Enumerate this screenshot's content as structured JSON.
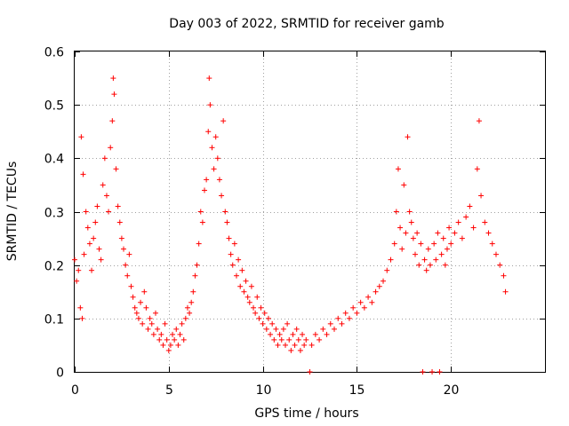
{
  "chart_data": {
    "type": "scatter",
    "title": "Day 003 of 2022, SRMTID for receiver gamb",
    "xlabel": "GPS time / hours",
    "ylabel": "SRMTID / TECUs",
    "xlim": [
      0,
      25
    ],
    "ylim": [
      0,
      0.6
    ],
    "x_ticks": [
      0,
      5,
      10,
      15,
      20
    ],
    "y_ticks": [
      0,
      0.1,
      0.2,
      0.3,
      0.4,
      0.5,
      0.6
    ],
    "x_tick_labels": [
      "0",
      "5",
      "10",
      "15",
      "20"
    ],
    "y_tick_labels": [
      "0",
      "0.1",
      "0.2",
      "0.3",
      "0.4",
      "0.5",
      "0.6"
    ],
    "grid": true,
    "marker": "+",
    "series_color": "#ff0000",
    "series": [
      {
        "name": "SRMTID",
        "points": [
          [
            0.0,
            0.21
          ],
          [
            0.1,
            0.17
          ],
          [
            0.2,
            0.19
          ],
          [
            0.3,
            0.12
          ],
          [
            0.35,
            0.44
          ],
          [
            0.4,
            0.1
          ],
          [
            0.45,
            0.37
          ],
          [
            0.5,
            0.22
          ],
          [
            0.6,
            0.3
          ],
          [
            0.7,
            0.27
          ],
          [
            0.8,
            0.24
          ],
          [
            0.9,
            0.19
          ],
          [
            1.0,
            0.25
          ],
          [
            1.1,
            0.28
          ],
          [
            1.2,
            0.31
          ],
          [
            1.3,
            0.23
          ],
          [
            1.4,
            0.21
          ],
          [
            1.5,
            0.35
          ],
          [
            1.6,
            0.4
          ],
          [
            1.7,
            0.33
          ],
          [
            1.8,
            0.3
          ],
          [
            1.9,
            0.42
          ],
          [
            2.0,
            0.47
          ],
          [
            2.05,
            0.55
          ],
          [
            2.1,
            0.52
          ],
          [
            2.2,
            0.38
          ],
          [
            2.3,
            0.31
          ],
          [
            2.4,
            0.28
          ],
          [
            2.5,
            0.25
          ],
          [
            2.6,
            0.23
          ],
          [
            2.7,
            0.2
          ],
          [
            2.8,
            0.18
          ],
          [
            2.9,
            0.22
          ],
          [
            3.0,
            0.16
          ],
          [
            3.1,
            0.14
          ],
          [
            3.2,
            0.12
          ],
          [
            3.3,
            0.11
          ],
          [
            3.4,
            0.1
          ],
          [
            3.5,
            0.13
          ],
          [
            3.6,
            0.09
          ],
          [
            3.7,
            0.15
          ],
          [
            3.8,
            0.12
          ],
          [
            3.9,
            0.08
          ],
          [
            4.0,
            0.1
          ],
          [
            4.1,
            0.09
          ],
          [
            4.2,
            0.07
          ],
          [
            4.3,
            0.11
          ],
          [
            4.4,
            0.08
          ],
          [
            4.5,
            0.06
          ],
          [
            4.6,
            0.07
          ],
          [
            4.7,
            0.05
          ],
          [
            4.8,
            0.09
          ],
          [
            4.9,
            0.06
          ],
          [
            5.0,
            0.04
          ],
          [
            5.1,
            0.05
          ],
          [
            5.2,
            0.07
          ],
          [
            5.3,
            0.06
          ],
          [
            5.4,
            0.08
          ],
          [
            5.5,
            0.05
          ],
          [
            5.6,
            0.07
          ],
          [
            5.7,
            0.09
          ],
          [
            5.8,
            0.06
          ],
          [
            5.9,
            0.1
          ],
          [
            6.0,
            0.12
          ],
          [
            6.1,
            0.11
          ],
          [
            6.2,
            0.13
          ],
          [
            6.3,
            0.15
          ],
          [
            6.4,
            0.18
          ],
          [
            6.5,
            0.2
          ],
          [
            6.6,
            0.24
          ],
          [
            6.7,
            0.3
          ],
          [
            6.8,
            0.28
          ],
          [
            6.9,
            0.34
          ],
          [
            7.0,
            0.36
          ],
          [
            7.1,
            0.45
          ],
          [
            7.15,
            0.55
          ],
          [
            7.2,
            0.5
          ],
          [
            7.3,
            0.42
          ],
          [
            7.4,
            0.38
          ],
          [
            7.5,
            0.44
          ],
          [
            7.6,
            0.4
          ],
          [
            7.7,
            0.36
          ],
          [
            7.8,
            0.33
          ],
          [
            7.9,
            0.47
          ],
          [
            8.0,
            0.3
          ],
          [
            8.1,
            0.28
          ],
          [
            8.2,
            0.25
          ],
          [
            8.3,
            0.22
          ],
          [
            8.4,
            0.2
          ],
          [
            8.5,
            0.24
          ],
          [
            8.6,
            0.18
          ],
          [
            8.7,
            0.21
          ],
          [
            8.8,
            0.16
          ],
          [
            8.9,
            0.19
          ],
          [
            9.0,
            0.15
          ],
          [
            9.1,
            0.17
          ],
          [
            9.2,
            0.14
          ],
          [
            9.3,
            0.13
          ],
          [
            9.4,
            0.16
          ],
          [
            9.5,
            0.12
          ],
          [
            9.6,
            0.11
          ],
          [
            9.7,
            0.14
          ],
          [
            9.8,
            0.1
          ],
          [
            9.9,
            0.12
          ],
          [
            10.0,
            0.09
          ],
          [
            10.1,
            0.11
          ],
          [
            10.2,
            0.08
          ],
          [
            10.3,
            0.1
          ],
          [
            10.4,
            0.07
          ],
          [
            10.5,
            0.09
          ],
          [
            10.6,
            0.06
          ],
          [
            10.7,
            0.08
          ],
          [
            10.8,
            0.05
          ],
          [
            10.9,
            0.07
          ],
          [
            11.0,
            0.06
          ],
          [
            11.1,
            0.08
          ],
          [
            11.2,
            0.05
          ],
          [
            11.3,
            0.09
          ],
          [
            11.4,
            0.06
          ],
          [
            11.5,
            0.04
          ],
          [
            11.6,
            0.07
          ],
          [
            11.7,
            0.05
          ],
          [
            11.8,
            0.08
          ],
          [
            11.9,
            0.06
          ],
          [
            12.0,
            0.04
          ],
          [
            12.1,
            0.07
          ],
          [
            12.2,
            0.05
          ],
          [
            12.3,
            0.06
          ],
          [
            12.5,
            0.0
          ],
          [
            12.6,
            0.05
          ],
          [
            12.8,
            0.07
          ],
          [
            13.0,
            0.06
          ],
          [
            13.2,
            0.08
          ],
          [
            13.4,
            0.07
          ],
          [
            13.6,
            0.09
          ],
          [
            13.8,
            0.08
          ],
          [
            14.0,
            0.1
          ],
          [
            14.2,
            0.09
          ],
          [
            14.4,
            0.11
          ],
          [
            14.6,
            0.1
          ],
          [
            14.8,
            0.12
          ],
          [
            15.0,
            0.11
          ],
          [
            15.2,
            0.13
          ],
          [
            15.4,
            0.12
          ],
          [
            15.6,
            0.14
          ],
          [
            15.8,
            0.13
          ],
          [
            16.0,
            0.15
          ],
          [
            16.2,
            0.16
          ],
          [
            16.4,
            0.17
          ],
          [
            16.6,
            0.19
          ],
          [
            16.8,
            0.21
          ],
          [
            17.0,
            0.24
          ],
          [
            17.1,
            0.3
          ],
          [
            17.2,
            0.38
          ],
          [
            17.3,
            0.27
          ],
          [
            17.4,
            0.23
          ],
          [
            17.5,
            0.35
          ],
          [
            17.6,
            0.26
          ],
          [
            17.7,
            0.44
          ],
          [
            17.8,
            0.3
          ],
          [
            17.9,
            0.28
          ],
          [
            18.0,
            0.25
          ],
          [
            18.1,
            0.22
          ],
          [
            18.2,
            0.26
          ],
          [
            18.3,
            0.2
          ],
          [
            18.4,
            0.24
          ],
          [
            18.5,
            0.0
          ],
          [
            18.6,
            0.21
          ],
          [
            18.7,
            0.19
          ],
          [
            18.8,
            0.23
          ],
          [
            18.9,
            0.2
          ],
          [
            19.0,
            0.0
          ],
          [
            19.1,
            0.24
          ],
          [
            19.2,
            0.21
          ],
          [
            19.3,
            0.26
          ],
          [
            19.4,
            0.0
          ],
          [
            19.5,
            0.22
          ],
          [
            19.6,
            0.25
          ],
          [
            19.7,
            0.2
          ],
          [
            19.8,
            0.23
          ],
          [
            19.9,
            0.27
          ],
          [
            20.0,
            0.24
          ],
          [
            20.2,
            0.26
          ],
          [
            20.4,
            0.28
          ],
          [
            20.6,
            0.25
          ],
          [
            20.8,
            0.29
          ],
          [
            21.0,
            0.31
          ],
          [
            21.2,
            0.27
          ],
          [
            21.4,
            0.38
          ],
          [
            21.5,
            0.47
          ],
          [
            21.6,
            0.33
          ],
          [
            21.8,
            0.28
          ],
          [
            22.0,
            0.26
          ],
          [
            22.2,
            0.24
          ],
          [
            22.4,
            0.22
          ],
          [
            22.6,
            0.2
          ],
          [
            22.8,
            0.18
          ],
          [
            22.9,
            0.15
          ]
        ]
      }
    ]
  }
}
